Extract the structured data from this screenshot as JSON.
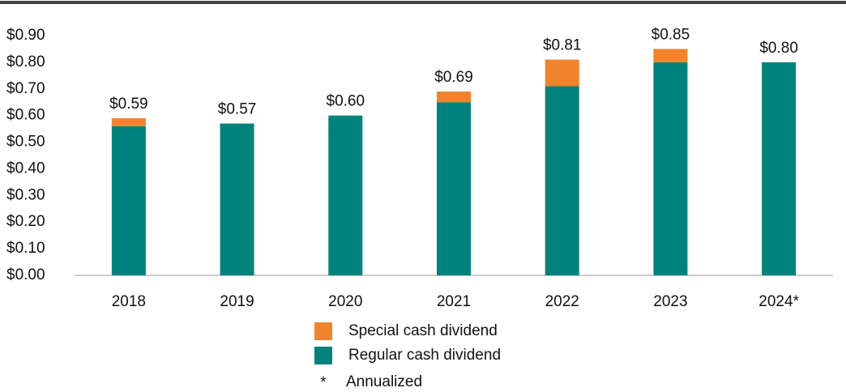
{
  "chart_data": {
    "type": "stacked_bar",
    "categories": [
      "2018",
      "2019",
      "2020",
      "2021",
      "2022",
      "2023",
      "2024*"
    ],
    "series": [
      {
        "name": "Regular cash dividend",
        "color": "#00827c",
        "values": [
          0.56,
          0.57,
          0.6,
          0.65,
          0.71,
          0.8,
          0.8
        ]
      },
      {
        "name": "Special cash dividend",
        "color": "#f0842c",
        "values": [
          0.03,
          0,
          0,
          0.04,
          0.1,
          0.05,
          0
        ]
      }
    ],
    "total_labels": [
      "$0.59",
      "$0.57",
      "$0.60",
      "$0.69",
      "$0.81",
      "$0.85",
      "$0.80"
    ],
    "ylim": [
      0,
      0.9
    ],
    "yticks": [
      {
        "value": 0,
        "label": "$0.00"
      },
      {
        "value": 0.1,
        "label": "$0.10"
      },
      {
        "value": 0.2,
        "label": "$0.20"
      },
      {
        "value": 0.3,
        "label": "$0.30"
      },
      {
        "value": 0.4,
        "label": "$0.40"
      },
      {
        "value": 0.5,
        "label": "$0.50"
      },
      {
        "value": 0.6,
        "label": "$0.60"
      },
      {
        "value": 0.7,
        "label": "$0.70"
      },
      {
        "value": 0.8,
        "label": "$0.80"
      },
      {
        "value": 0.9,
        "label": "$0.90"
      }
    ],
    "legend_order": [
      1,
      0
    ],
    "note_marker": "*",
    "note": "Annualized"
  }
}
